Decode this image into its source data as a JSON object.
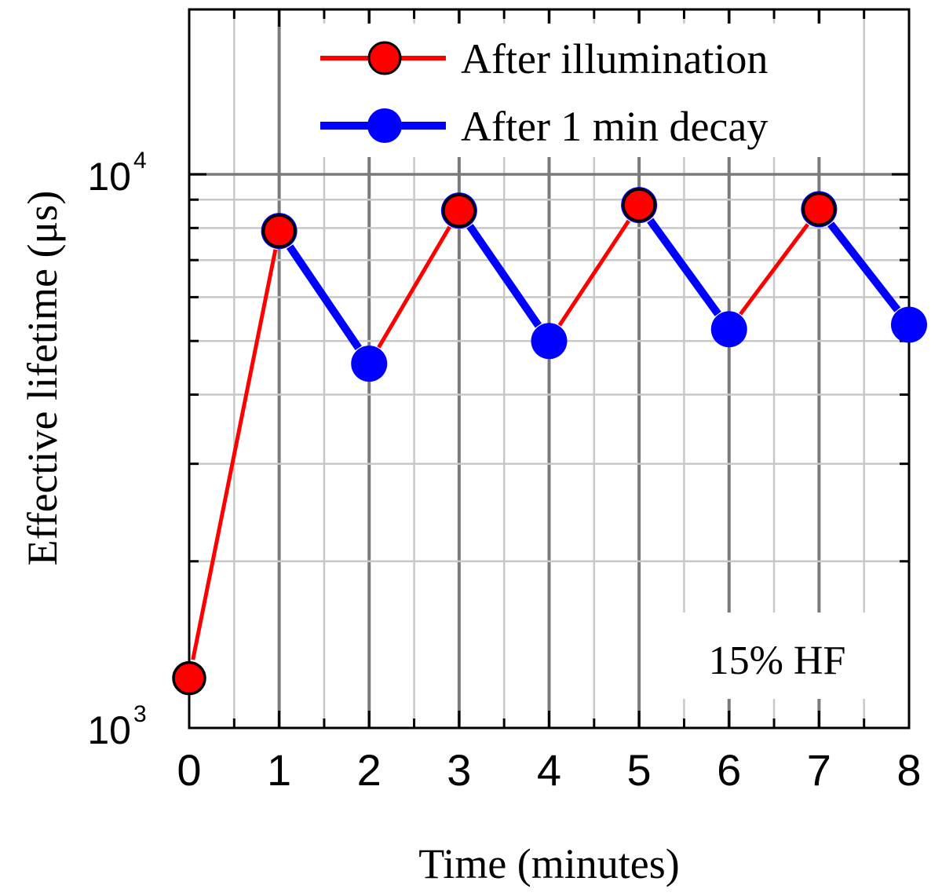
{
  "chart_data": {
    "type": "line",
    "x": [
      0,
      1,
      2,
      3,
      4,
      5,
      6,
      7,
      8
    ],
    "series": [
      {
        "name": "After illumination",
        "color": "#ff0000",
        "x": [
          0,
          1,
          3,
          5,
          7
        ],
        "values": [
          1230,
          7900,
          8600,
          8800,
          8650
        ]
      },
      {
        "name": "After 1 min decay",
        "color": "#0000ff",
        "x": [
          1,
          2,
          3,
          4,
          5,
          6,
          7,
          8
        ],
        "values": [
          7900,
          4550,
          8600,
          5000,
          8800,
          5250,
          8650,
          5350
        ]
      }
    ],
    "segments": [
      {
        "x": [
          0,
          1
        ],
        "series": 0
      },
      {
        "x": [
          1,
          2
        ],
        "series": 1
      },
      {
        "x": [
          2,
          3
        ],
        "series": 0
      },
      {
        "x": [
          3,
          4
        ],
        "series": 1
      },
      {
        "x": [
          4,
          5
        ],
        "series": 0
      },
      {
        "x": [
          5,
          6
        ],
        "series": 1
      },
      {
        "x": [
          6,
          7
        ],
        "series": 0
      },
      {
        "x": [
          7,
          8
        ],
        "series": 1
      }
    ],
    "xlabel": "Time (minutes)",
    "ylabel": "Effective lifetime (μs)",
    "xlim": [
      0,
      8
    ],
    "ylim": [
      1000,
      20000
    ],
    "y_scale": "log",
    "x_ticks": [
      "0",
      "1",
      "2",
      "3",
      "4",
      "5",
      "6",
      "7",
      "8"
    ],
    "y_ticks": [
      {
        "value": 1000,
        "base": "10",
        "exp": "3"
      },
      {
        "value": 10000,
        "base": "10",
        "exp": "4"
      }
    ],
    "grid": true,
    "legend_position": "top-right",
    "annotation": "15% HF"
  }
}
